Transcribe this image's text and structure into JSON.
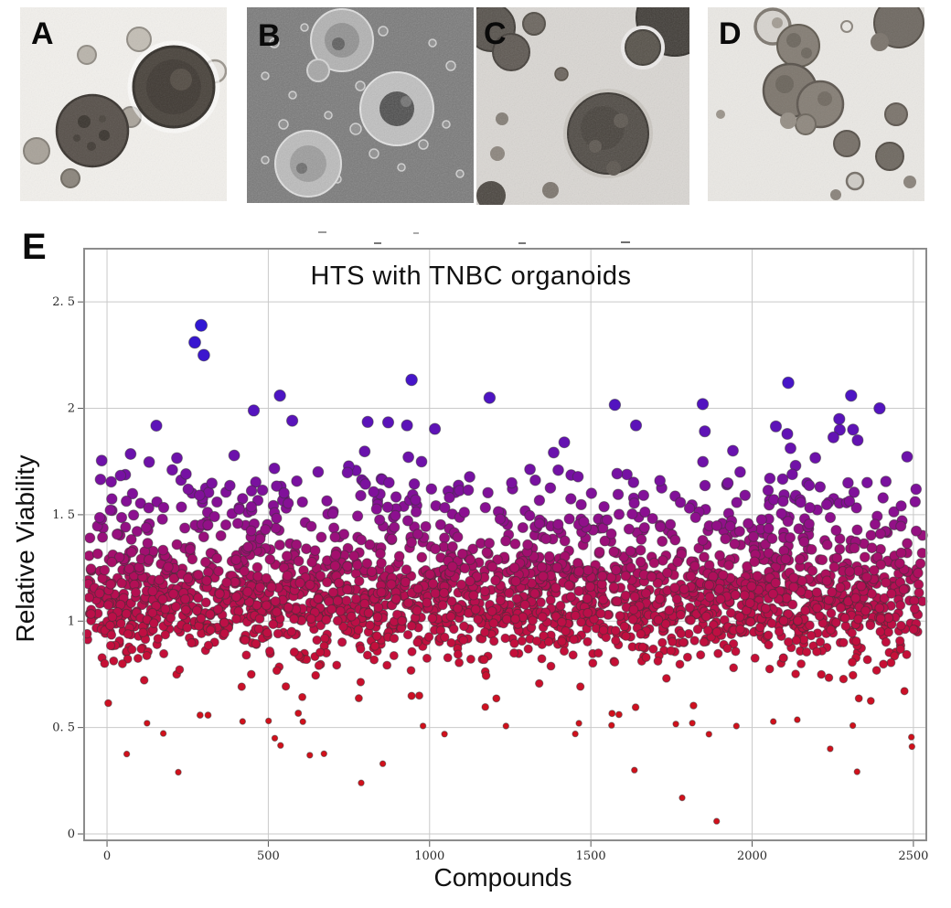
{
  "figure": {
    "panel_labels": [
      "A",
      "B",
      "C",
      "D"
    ],
    "panel_e_label": "E"
  },
  "chart_data": {
    "type": "scatter",
    "title": "HTS with TNBC organoids",
    "xlabel": "Compounds",
    "ylabel": "Relative Viability",
    "x_ticks": [
      0,
      500,
      1000,
      1500,
      2000,
      2500
    ],
    "x_tick_labels": [
      "0",
      "500",
      "1000",
      "1500",
      "2000",
      "2500"
    ],
    "y_ticks": [
      0,
      0.5,
      1,
      1.5,
      2,
      2.5
    ],
    "y_tick_labels": [
      "0",
      "0. 5",
      "1",
      "1. 5",
      "2",
      "2. 5"
    ],
    "xlim": [
      -71,
      2540
    ],
    "ylim": [
      -0.03,
      2.75
    ],
    "grid": true,
    "legend": "none",
    "style": {
      "grid_color": "#c9c9c9",
      "border_color": "#8c8c8c",
      "tick_color": "#555555",
      "tick_label_color": "#2a2a2a",
      "background": "#ffffff"
    },
    "point_style": {
      "stroke": "#333333",
      "stroke_opacity": 0.5,
      "stroke_width": 1,
      "r_min": 3.2,
      "r_max": 6.6,
      "value_domain": [
        0.55,
        2.45
      ]
    },
    "color_stops": [
      [
        0.0,
        "#d2101b"
      ],
      [
        0.16,
        "#c40f3a"
      ],
      [
        0.33,
        "#b30f55"
      ],
      [
        0.5,
        "#8c1090"
      ],
      [
        0.66,
        "#6912ae"
      ],
      [
        0.82,
        "#4815c8"
      ],
      [
        1.0,
        "#2b17d6"
      ]
    ],
    "bulk": {
      "seed": 20,
      "n": 2400,
      "x_min": -65,
      "x_max": 2535,
      "components": [
        {
          "weight": 0.695,
          "mean": 1.07,
          "sd": 0.13
        },
        {
          "weight": 0.25,
          "mean": 1.38,
          "sd": 0.16
        },
        {
          "weight": 0.03,
          "mean": 1.75,
          "sd": 0.18
        },
        {
          "weight": 0.025,
          "mean": 0.55,
          "sd": 0.14
        }
      ],
      "y_clamp": [
        0.07,
        2.18
      ]
    },
    "outliers_high": [
      [
        272,
        2.31
      ],
      [
        292,
        2.39
      ],
      [
        300,
        2.25
      ],
      [
        536,
        2.06
      ],
      [
        455,
        1.99
      ],
      [
        930,
        1.92
      ],
      [
        1640,
        1.92
      ],
      [
        2112,
        2.12
      ],
      [
        2270,
        1.95
      ],
      [
        2307,
        2.06
      ],
      [
        2313,
        1.9
      ],
      [
        2327,
        1.85
      ],
      [
        2395,
        2.0
      ]
    ],
    "outliers_low": [
      [
        221,
        0.29
      ],
      [
        520,
        0.45
      ],
      [
        788,
        0.24
      ],
      [
        855,
        0.33
      ],
      [
        1463,
        0.52
      ],
      [
        1635,
        0.3
      ],
      [
        1783,
        0.17
      ],
      [
        1890,
        0.06
      ],
      [
        2242,
        0.4
      ]
    ]
  }
}
